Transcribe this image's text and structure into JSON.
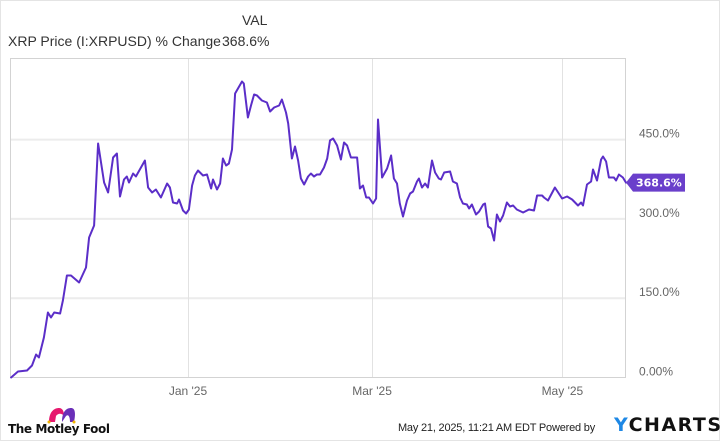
{
  "header": {
    "column_label": "VAL",
    "series_name": "XRP Price (I:XRPUSD) % Change",
    "series_value": "368.6%"
  },
  "colors": {
    "line": "#5b2ec8",
    "end_label_bg": "#6a3fcb",
    "grid": "#ececec",
    "axis": "#d0d0d0",
    "ycharts_y": "#1e88e5",
    "fool_pink": "#e6196e",
    "fool_purple": "#6a2fb8"
  },
  "footer": {
    "brand": "The Motley Fool",
    "brand_icon": "jester-hat-icon",
    "timestamp": "May 21, 2025, 11:21 AM EDT",
    "powered_by": "Powered by",
    "provider_y": "Y",
    "provider_rest": "CHARTS"
  },
  "chart_data": {
    "type": "line",
    "title": "XRP Price (I:XRPUSD) % Change",
    "xlabel": "",
    "ylabel": "",
    "x_unit": "days relative to Jan 1, 2025",
    "ylim": [
      0,
      600
    ],
    "y_ticks": [
      {
        "value": 0,
        "label": "0.00%"
      },
      {
        "value": 150,
        "label": "150.0%"
      },
      {
        "value": 300,
        "label": "300.0%"
      },
      {
        "value": 450,
        "label": "450.0%"
      }
    ],
    "x_ticks": [
      {
        "day": 0,
        "label": "Jan '25"
      },
      {
        "day": 59,
        "label": "Mar '25"
      },
      {
        "day": 120,
        "label": "May '25"
      }
    ],
    "grid": true,
    "legend_position": "top-left",
    "end_value_label": "368.6%",
    "series": [
      {
        "name": "XRP Price (I:XRPUSD) % Change",
        "points": [
          [
            -56.7,
            0
          ],
          [
            -54.5,
            11.3
          ],
          [
            -51.6,
            13.2
          ],
          [
            -50.0,
            22.7
          ],
          [
            -48.7,
            43.5
          ],
          [
            -47.8,
            37.8
          ],
          [
            -46.2,
            75.7
          ],
          [
            -44.9,
            123.0
          ],
          [
            -43.9,
            113.5
          ],
          [
            -42.9,
            123.0
          ],
          [
            -41.0,
            121.1
          ],
          [
            -40.1,
            145.7
          ],
          [
            -38.8,
            192.9
          ],
          [
            -37.5,
            192.9
          ],
          [
            -34.9,
            179.7
          ],
          [
            -32.7,
            208.1
          ],
          [
            -31.7,
            264.8
          ],
          [
            -30.1,
            287.5
          ],
          [
            -28.8,
            442.6
          ],
          [
            -26.9,
            368.9
          ],
          [
            -25.6,
            349.9
          ],
          [
            -24.0,
            416.2
          ],
          [
            -22.8,
            423.7
          ],
          [
            -21.8,
            342.4
          ],
          [
            -20.5,
            374.5
          ],
          [
            -19.6,
            380.2
          ],
          [
            -18.9,
            368.9
          ],
          [
            -17.6,
            385.9
          ],
          [
            -16.7,
            380.2
          ],
          [
            -13.8,
            410.5
          ],
          [
            -12.8,
            359.4
          ],
          [
            -11.5,
            349.9
          ],
          [
            -10.3,
            355.6
          ],
          [
            -8.7,
            340.5
          ],
          [
            -6.7,
            367.0
          ],
          [
            -5.8,
            359.4
          ],
          [
            -4.8,
            331.0
          ],
          [
            -3.5,
            329.1
          ],
          [
            -2.9,
            336.7
          ],
          [
            -1.6,
            315.9
          ],
          [
            -0.6,
            310.2
          ],
          [
            0.3,
            317.8
          ],
          [
            1.3,
            363.2
          ],
          [
            2.2,
            382.1
          ],
          [
            3.2,
            391.6
          ],
          [
            4.8,
            382.1
          ],
          [
            6.1,
            384.0
          ],
          [
            7.4,
            357.5
          ],
          [
            8.0,
            374.5
          ],
          [
            9.3,
            355.6
          ],
          [
            10.3,
            367.0
          ],
          [
            11.2,
            414.3
          ],
          [
            12.2,
            401.0
          ],
          [
            13.1,
            404.8
          ],
          [
            14.1,
            431.3
          ],
          [
            15.1,
            537.2
          ],
          [
            17.3,
            559.9
          ],
          [
            17.9,
            556.1
          ],
          [
            19.2,
            491.8
          ],
          [
            20.2,
            514.5
          ],
          [
            21.2,
            535.3
          ],
          [
            22.1,
            533.4
          ],
          [
            23.7,
            524.0
          ],
          [
            25.3,
            520.2
          ],
          [
            26.3,
            503.2
          ],
          [
            27.6,
            510.7
          ],
          [
            29.2,
            514.5
          ],
          [
            30.1,
            525.9
          ],
          [
            31.4,
            501.3
          ],
          [
            32.1,
            480.5
          ],
          [
            33.3,
            414.3
          ],
          [
            34.3,
            437.0
          ],
          [
            35.3,
            410.5
          ],
          [
            36.2,
            376.4
          ],
          [
            37.2,
            365.1
          ],
          [
            38.5,
            380.2
          ],
          [
            39.4,
            385.9
          ],
          [
            40.4,
            380.2
          ],
          [
            41.3,
            384.0
          ],
          [
            42.3,
            384.0
          ],
          [
            43.6,
            397.2
          ],
          [
            44.6,
            414.3
          ],
          [
            45.5,
            448.3
          ],
          [
            46.5,
            452.1
          ],
          [
            47.8,
            438.9
          ],
          [
            49.0,
            412.4
          ],
          [
            50.0,
            444.5
          ],
          [
            51.0,
            438.9
          ],
          [
            52.2,
            416.2
          ],
          [
            54.2,
            416.2
          ],
          [
            55.1,
            357.5
          ],
          [
            56.1,
            363.2
          ],
          [
            57.1,
            340.5
          ],
          [
            58.0,
            340.5
          ],
          [
            59.3,
            329.1
          ],
          [
            60.3,
            338.6
          ],
          [
            60.9,
            488.0
          ],
          [
            62.2,
            378.3
          ],
          [
            63.8,
            395.3
          ],
          [
            65.1,
            419.9
          ],
          [
            66.0,
            376.4
          ],
          [
            67.0,
            367.0
          ],
          [
            67.9,
            329.1
          ],
          [
            68.9,
            304.5
          ],
          [
            70.2,
            334.8
          ],
          [
            71.2,
            348.1
          ],
          [
            72.1,
            351.8
          ],
          [
            73.4,
            370.8
          ],
          [
            74.0,
            376.4
          ],
          [
            75.0,
            359.4
          ],
          [
            76.0,
            367.0
          ],
          [
            76.9,
            359.4
          ],
          [
            78.2,
            410.5
          ],
          [
            79.2,
            387.8
          ],
          [
            80.4,
            376.4
          ],
          [
            81.1,
            374.5
          ],
          [
            82.1,
            387.8
          ],
          [
            84.0,
            389.7
          ],
          [
            84.9,
            370.8
          ],
          [
            86.2,
            367.0
          ],
          [
            87.2,
            340.5
          ],
          [
            88.1,
            329.1
          ],
          [
            89.4,
            327.2
          ],
          [
            90.1,
            319.7
          ],
          [
            91.0,
            327.2
          ],
          [
            92.3,
            308.3
          ],
          [
            93.3,
            314.0
          ],
          [
            94.6,
            327.2
          ],
          [
            95.2,
            329.1
          ],
          [
            96.2,
            285.6
          ],
          [
            97.1,
            281.9
          ],
          [
            98.1,
            259.2
          ],
          [
            99.0,
            308.3
          ],
          [
            100.0,
            295.1
          ],
          [
            101.0,
            306.4
          ],
          [
            102.2,
            331.0
          ],
          [
            103.2,
            323.5
          ],
          [
            104.2,
            325.4
          ],
          [
            105.4,
            317.8
          ],
          [
            107.4,
            312.1
          ],
          [
            109.3,
            317.8
          ],
          [
            110.9,
            315.9
          ],
          [
            111.9,
            344.3
          ],
          [
            113.5,
            344.3
          ],
          [
            114.1,
            340.5
          ],
          [
            115.4,
            334.8
          ],
          [
            117.6,
            359.4
          ],
          [
            119.9,
            338.6
          ],
          [
            121.5,
            342.4
          ],
          [
            123.1,
            336.7
          ],
          [
            125.0,
            325.4
          ],
          [
            126.0,
            331.0
          ],
          [
            126.6,
            325.4
          ],
          [
            127.9,
            365.1
          ],
          [
            129.2,
            370.8
          ],
          [
            129.8,
            393.5
          ],
          [
            131.1,
            372.6
          ],
          [
            132.4,
            412.4
          ],
          [
            133.0,
            418.0
          ],
          [
            134.0,
            408.6
          ],
          [
            134.9,
            378.3
          ],
          [
            136.5,
            378.3
          ],
          [
            137.2,
            372.6
          ],
          [
            138.1,
            384.0
          ],
          [
            139.4,
            378.3
          ],
          [
            140.4,
            368.6
          ]
        ]
      }
    ]
  }
}
